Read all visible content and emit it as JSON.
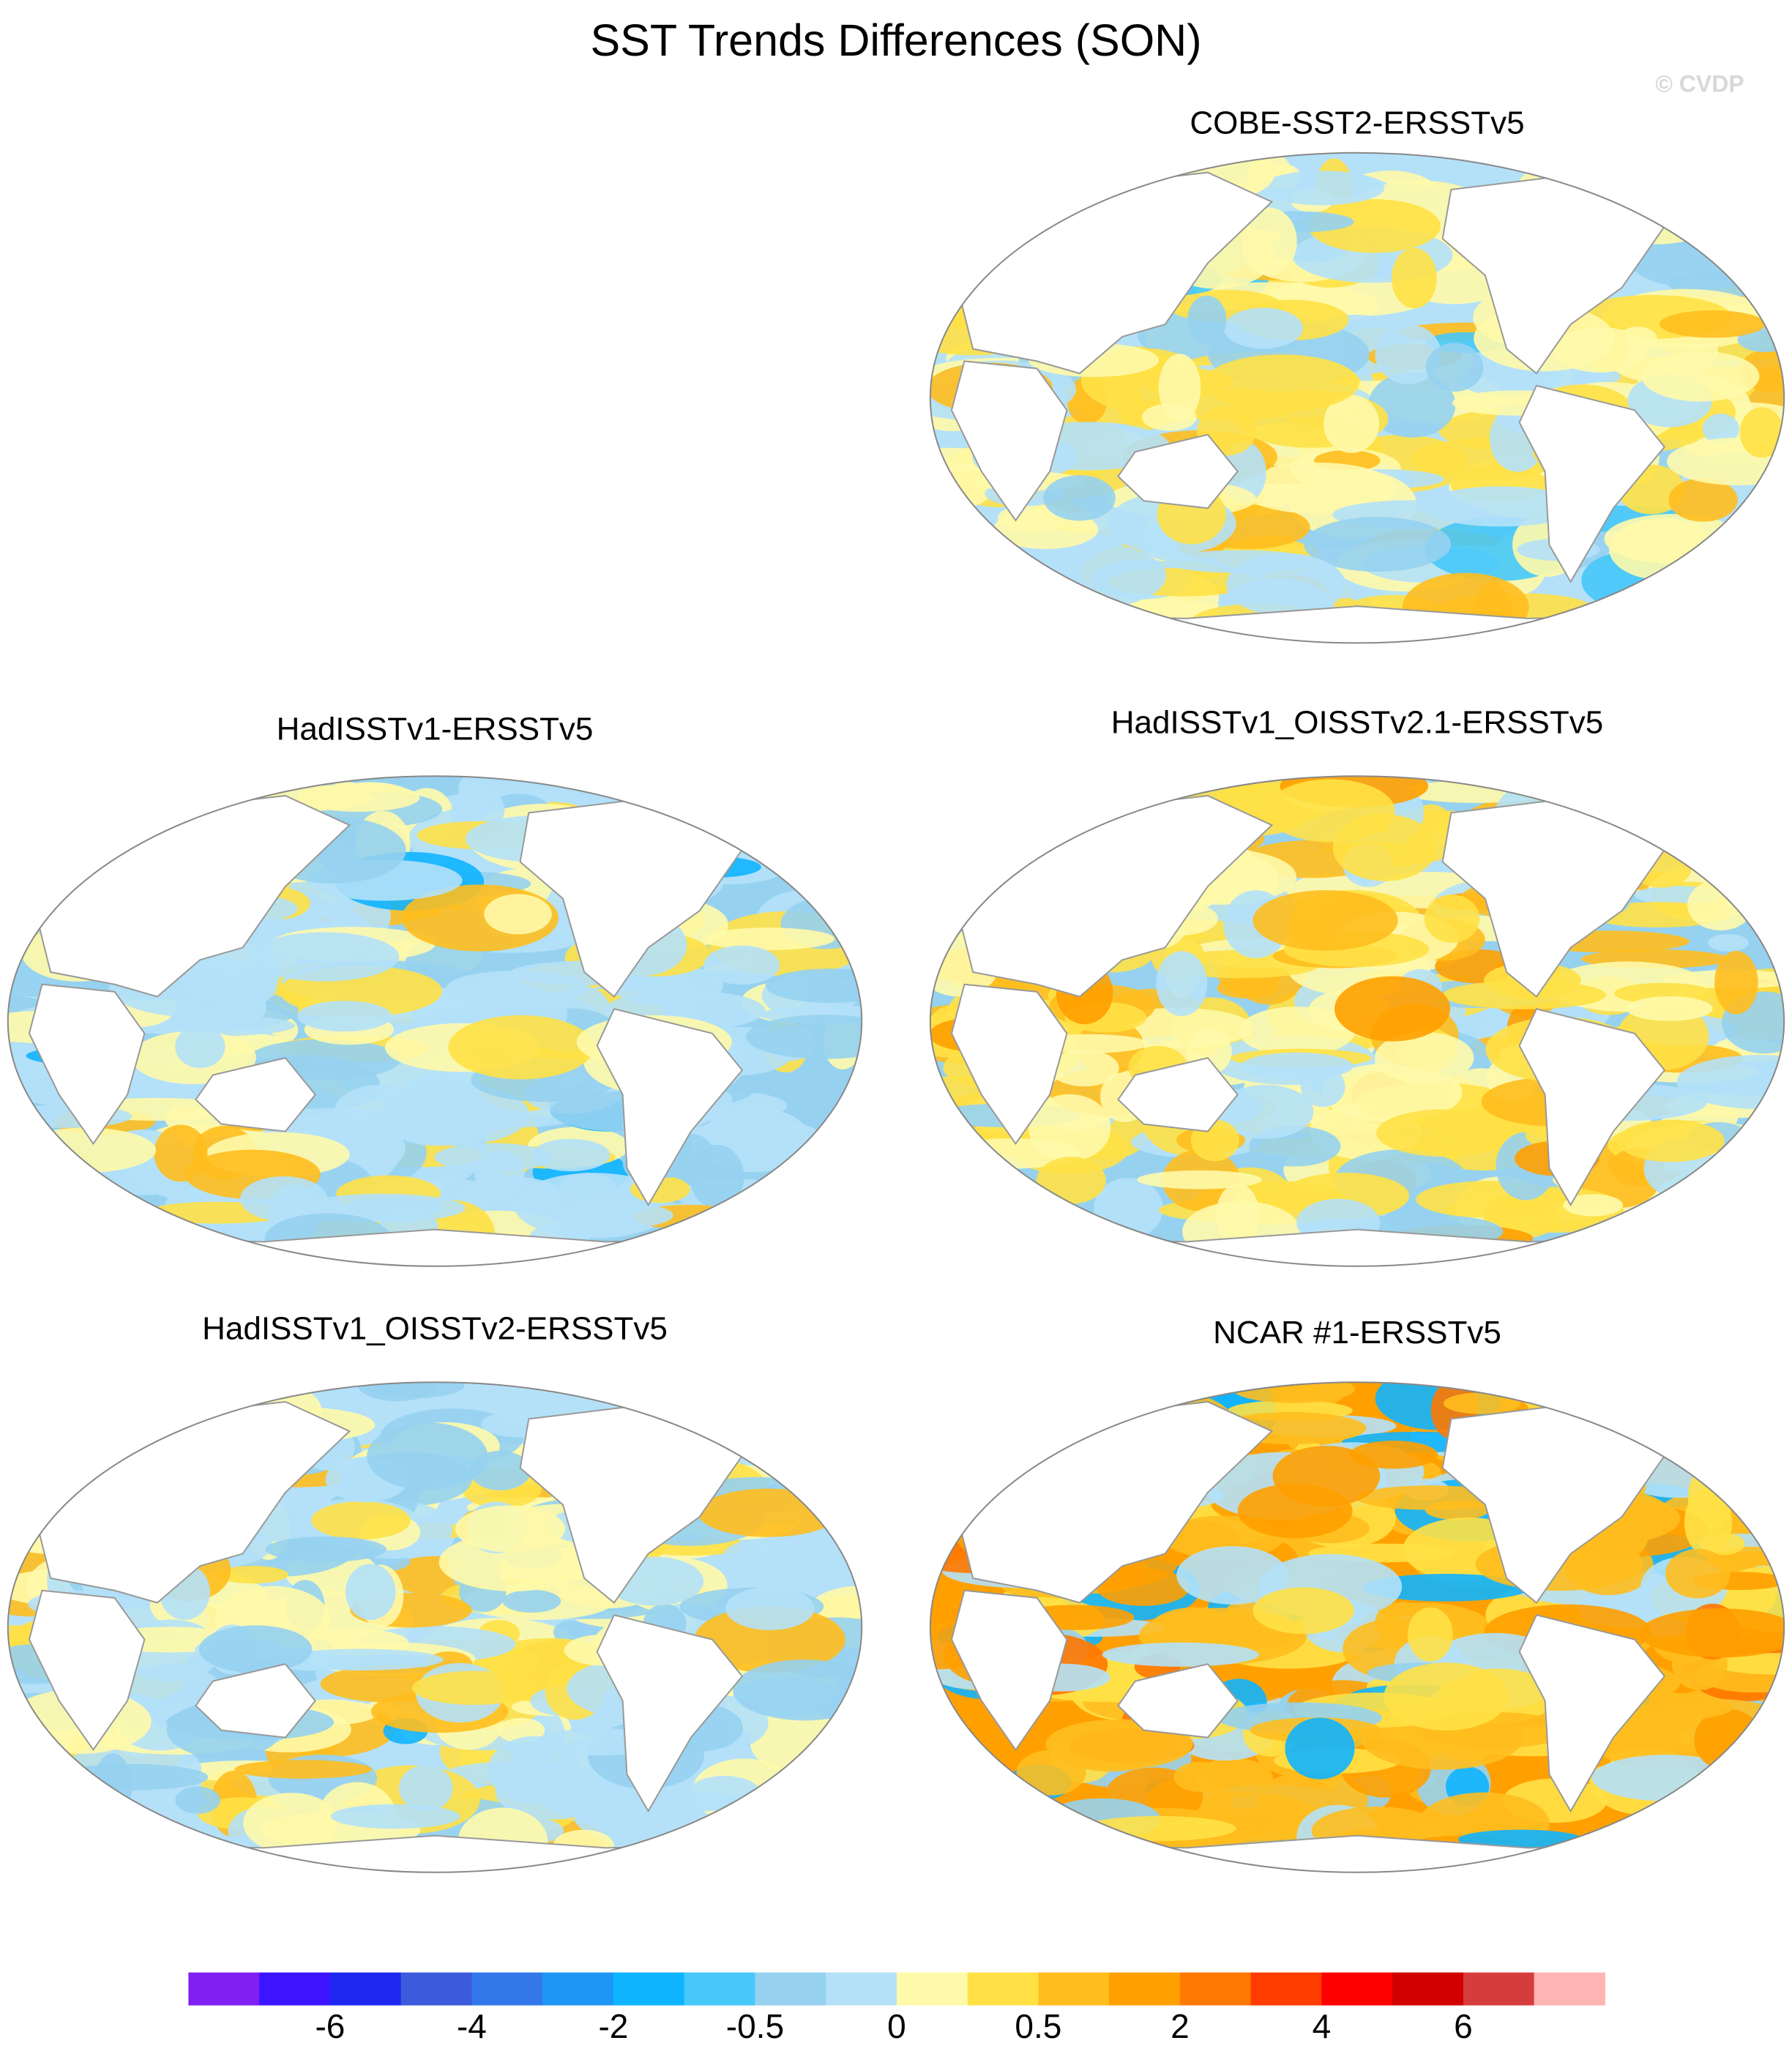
{
  "title": "SST Trends Differences (SON)",
  "watermark": "© CVDP",
  "panels": [
    {
      "title": "COBE-SST2-ERSSTv5"
    },
    {
      "title": "HadISSTv1-ERSSTv5"
    },
    {
      "title": "HadISSTv1_OISSTv2.1-ERSSTv5"
    },
    {
      "title": "HadISSTv1_OISSTv2-ERSSTv5"
    },
    {
      "title": "NCAR #1-ERSSTv5"
    }
  ],
  "colorbar": {
    "colors": [
      "#7f1ff2",
      "#3c14ff",
      "#1e28f0",
      "#3c5adc",
      "#3278eb",
      "#1e96f5",
      "#0fb4ff",
      "#46c8fa",
      "#96d2f0",
      "#b4e1f8",
      "#fffaaa",
      "#ffe146",
      "#ffbe1e",
      "#ffa000",
      "#ff7800",
      "#ff3c00",
      "#ff0000",
      "#d20000",
      "#d73c3c",
      "#ffb4b4"
    ],
    "ticks": [
      -6,
      -4,
      -2,
      -0.5,
      0,
      0.5,
      2,
      4,
      6
    ]
  }
}
